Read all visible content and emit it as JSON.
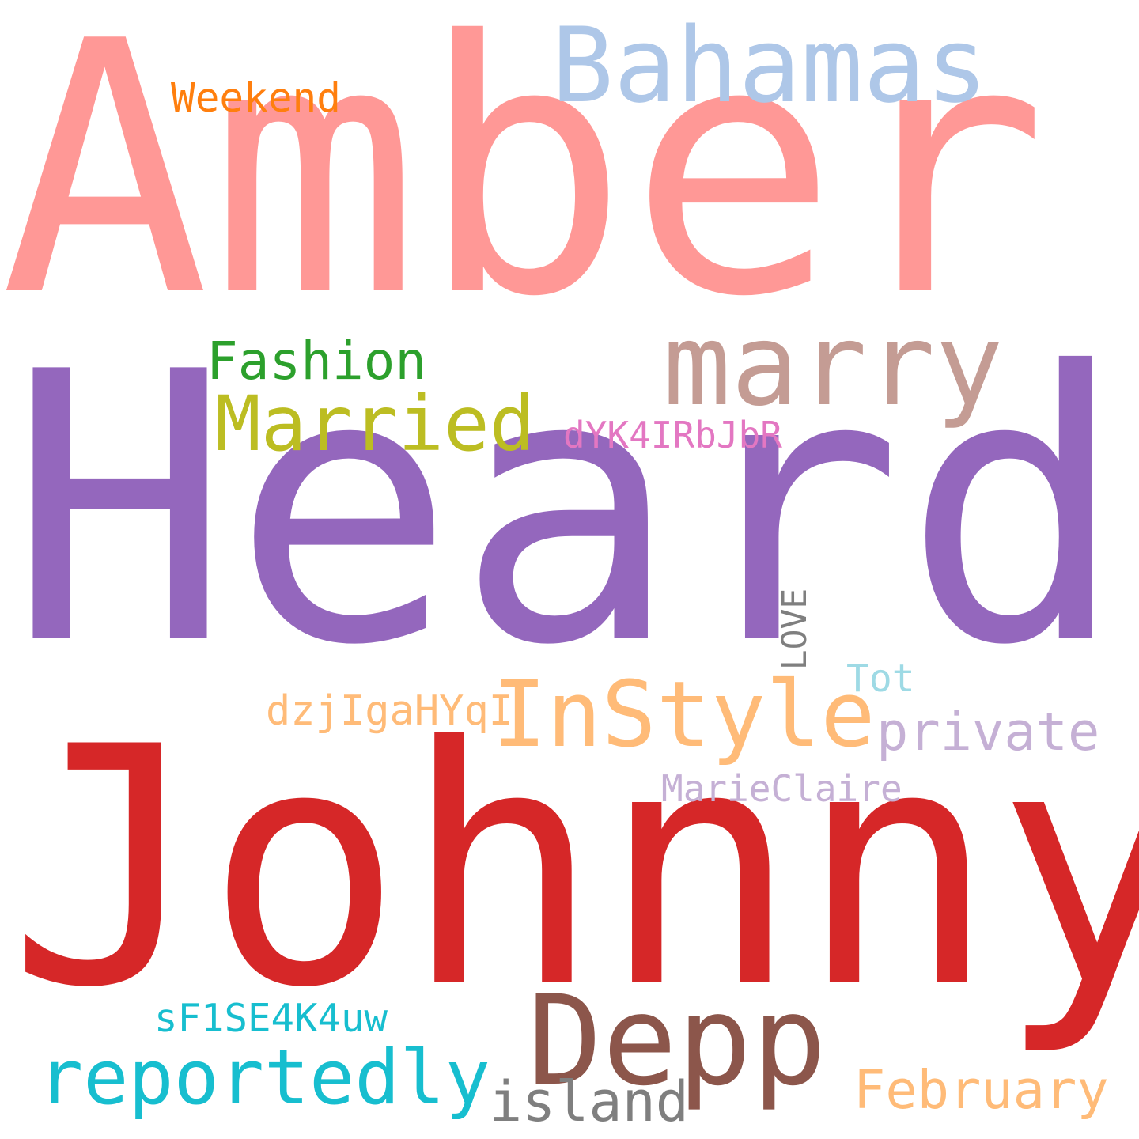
{
  "words": [
    {
      "text": "Amber",
      "color": "#ff9896"
    },
    {
      "text": "Heard",
      "color": "#9467bd"
    },
    {
      "text": "Johnny",
      "color": "#d62728"
    },
    {
      "text": "Bahamas",
      "color": "#aec7e8"
    },
    {
      "text": "marry",
      "color": "#c49c94"
    },
    {
      "text": "Weekend",
      "color": "#ff7f0e"
    },
    {
      "text": "Fashion",
      "color": "#2ca02c"
    },
    {
      "text": "Married",
      "color": "#bcbd22"
    },
    {
      "text": "dYK4IRbJbR",
      "color": "#e377c2"
    },
    {
      "text": "LOVE",
      "color": "#7f7f7f"
    },
    {
      "text": "Tot",
      "color": "#9edae5"
    },
    {
      "text": "InStyle",
      "color": "#ffbb78"
    },
    {
      "text": "dzjIgaHYqI",
      "color": "#ffbb78"
    },
    {
      "text": "private",
      "color": "#c5b0d5"
    },
    {
      "text": "MarieClaire",
      "color": "#c5b0d5"
    },
    {
      "text": "Depp",
      "color": "#8c564b"
    },
    {
      "text": "sF1SE4K4uw",
      "color": "#17becf"
    },
    {
      "text": "reportedly",
      "color": "#17becf"
    },
    {
      "text": "island",
      "color": "#7f7f7f"
    },
    {
      "text": "February",
      "color": "#ffbb78"
    }
  ]
}
